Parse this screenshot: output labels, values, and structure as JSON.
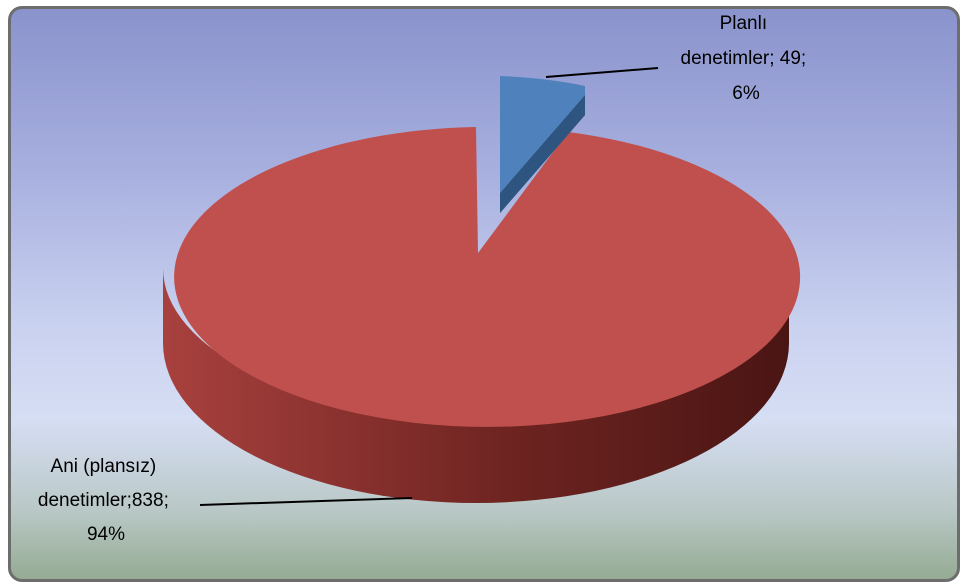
{
  "chart_data": {
    "type": "pie",
    "three_d": true,
    "slices": [
      {
        "name": "Planlı denetimler",
        "value": 49,
        "percent": "6%",
        "label_lines": [
          "Planlı",
          "denetimler; 49;",
          "6%"
        ],
        "color": "#4f81bd",
        "exploded": true
      },
      {
        "name": "Ani (plansız) denetimler",
        "value": 838,
        "percent": "94%",
        "label_lines": [
          "Ani (plansız)",
          "denetimler;838;",
          "94%"
        ],
        "color": "#c0504d",
        "exploded": false
      }
    ],
    "legend": "none"
  }
}
